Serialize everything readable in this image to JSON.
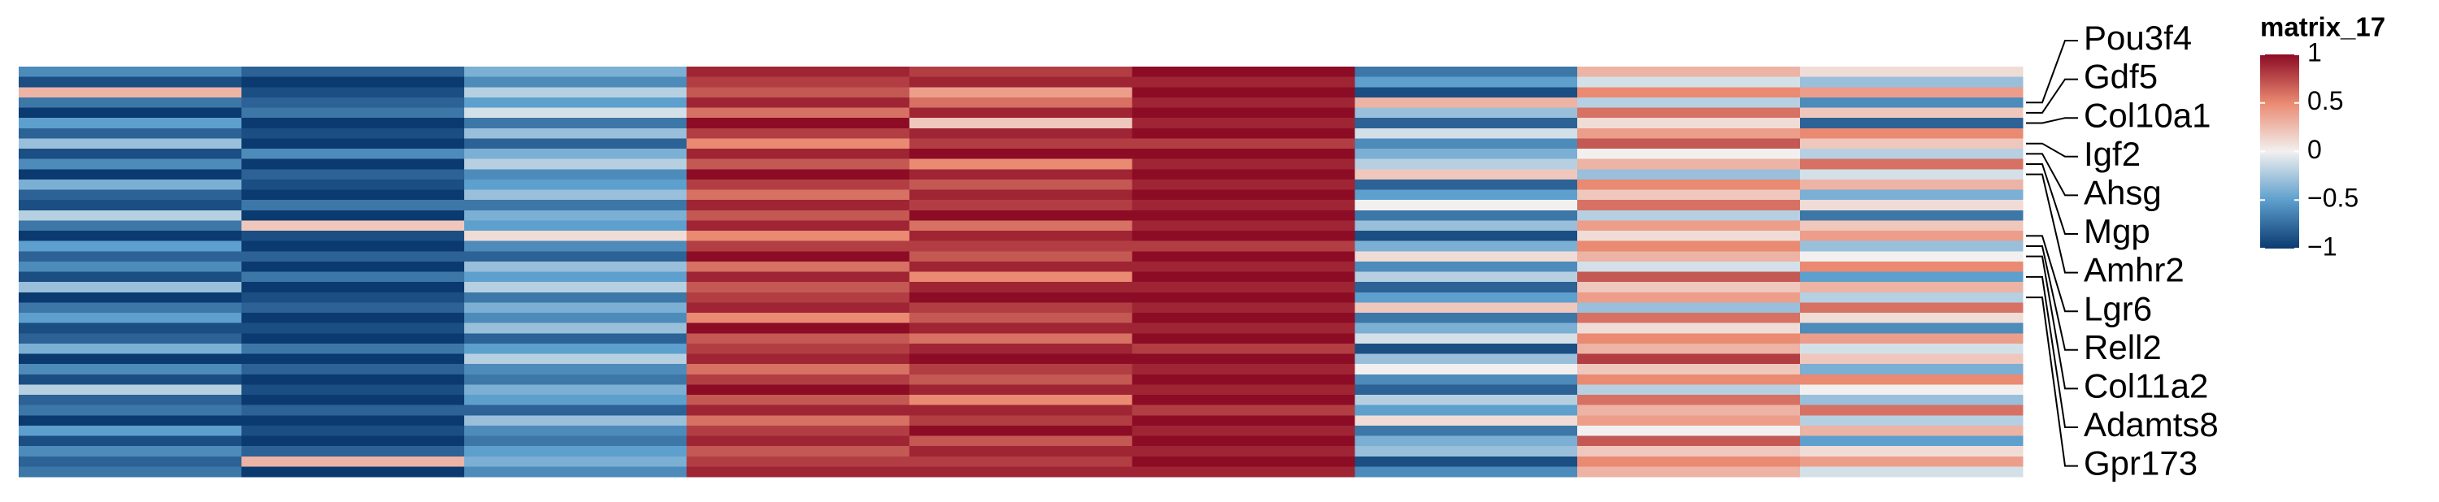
{
  "chart_data": {
    "type": "heatmap",
    "legend_title": "matrix_17",
    "matrix": [
      [
        -0.6,
        -0.8,
        -0.4,
        0.9,
        0.8,
        1,
        -0.7,
        0.3,
        0.1
      ],
      [
        -0.9,
        -1,
        -0.6,
        0.8,
        0.9,
        0.9,
        -0.5,
        -0.1,
        -0.3
      ],
      [
        0.3,
        -0.9,
        -0.2,
        0.7,
        0.4,
        1,
        -0.9,
        0.5,
        0.4
      ],
      [
        -0.7,
        -0.8,
        -0.5,
        0.9,
        0.6,
        0.9,
        0.3,
        -0.2,
        -0.6
      ],
      [
        -1,
        -0.7,
        -0.1,
        0.6,
        0.9,
        1,
        -0.3,
        0.6,
        0.2
      ],
      [
        -0.5,
        -1,
        -0.7,
        1,
        0.2,
        0.9,
        -0.8,
        0.1,
        -0.8
      ],
      [
        -0.8,
        -0.9,
        -0.3,
        0.8,
        0.9,
        1,
        -0.1,
        0.4,
        0.5
      ],
      [
        -0.3,
        -1,
        -0.8,
        0.5,
        0.8,
        0.8,
        -0.6,
        0.7,
        0.2
      ],
      [
        -0.9,
        -0.6,
        -0.4,
        0.9,
        1,
        1,
        -0.4,
        0,
        -0.2
      ],
      [
        -0.6,
        -1,
        -0.2,
        0.7,
        0.5,
        0.9,
        -0.2,
        0.3,
        0.6
      ],
      [
        -1,
        -0.8,
        -0.6,
        1,
        0.9,
        1,
        0.2,
        -0.3,
        -0.1
      ],
      [
        -0.4,
        -0.9,
        -0.5,
        0.8,
        0.7,
        0.9,
        -0.8,
        0.5,
        0.3
      ],
      [
        -0.8,
        -1,
        -0.3,
        0.6,
        0.9,
        1,
        -0.5,
        0.2,
        -0.4
      ],
      [
        -0.9,
        -0.7,
        -0.7,
        0.9,
        0.8,
        0.9,
        0,
        0.6,
        0.1
      ],
      [
        -0.2,
        -1,
        -0.4,
        0.7,
        1,
        1,
        -0.7,
        -0.2,
        -0.7
      ],
      [
        -0.7,
        0.2,
        -0.5,
        0.9,
        0.6,
        0.9,
        -0.3,
        0.4,
        0.2
      ],
      [
        -1,
        -0.9,
        0.1,
        0.5,
        0.9,
        1,
        -0.9,
        0.1,
        0.4
      ],
      [
        -0.5,
        -1,
        -0.6,
        0.8,
        0.8,
        0.8,
        -0.4,
        0.5,
        -0.3
      ],
      [
        -0.8,
        -0.8,
        -0.8,
        1,
        0.7,
        1,
        0.1,
        0.3,
        0
      ],
      [
        -0.6,
        -1,
        -0.3,
        0.6,
        0.9,
        0.9,
        -0.6,
        -0.1,
        0.5
      ],
      [
        -0.9,
        -0.7,
        -0.5,
        0.9,
        0.5,
        1,
        -0.2,
        0.7,
        -0.5
      ],
      [
        -0.3,
        -1,
        -0.2,
        0.7,
        0.9,
        0.9,
        -0.8,
        0.2,
        0.3
      ],
      [
        -1,
        -0.9,
        -0.7,
        0.8,
        1,
        1,
        -0.5,
        0.4,
        -0.2
      ],
      [
        -0.7,
        -0.8,
        -0.4,
        0.9,
        0.8,
        0.9,
        0.2,
        -0.3,
        0.6
      ],
      [
        -0.5,
        -1,
        -0.6,
        0.5,
        0.7,
        1,
        -0.7,
        0.6,
        0.1
      ],
      [
        -0.9,
        -0.9,
        -0.3,
        1,
        0.9,
        0.9,
        -0.4,
        0.1,
        -0.6
      ],
      [
        -0.8,
        -1,
        -0.8,
        0.7,
        0.6,
        1,
        -0.1,
        0.5,
        0.4
      ],
      [
        -0.4,
        -0.7,
        -0.5,
        0.8,
        0.9,
        0.8,
        -0.9,
        0.3,
        -0.1
      ],
      [
        -1,
        -1,
        -0.2,
        0.9,
        1,
        1,
        -0.3,
        0.8,
        0.2
      ],
      [
        -0.6,
        -0.8,
        -0.6,
        0.6,
        0.8,
        0.9,
        0,
        0.2,
        -0.4
      ],
      [
        -0.9,
        -1,
        -0.7,
        0.8,
        0.7,
        1,
        -0.6,
        0.5,
        0.5
      ],
      [
        -0.2,
        -0.9,
        -0.4,
        1,
        0.9,
        0.9,
        -0.8,
        -0.2,
        0
      ],
      [
        -0.8,
        -1,
        -0.5,
        0.7,
        0.5,
        1,
        -0.2,
        0.6,
        -0.3
      ],
      [
        -0.7,
        -0.8,
        -0.8,
        0.9,
        0.9,
        0.8,
        -0.5,
        0.3,
        0.6
      ],
      [
        -1,
        -1,
        -0.3,
        0.6,
        0.8,
        1,
        0.1,
        0.4,
        -0.2
      ],
      [
        -0.5,
        -0.9,
        -0.6,
        0.8,
        1,
        0.9,
        -0.7,
        0,
        0.3
      ],
      [
        -0.9,
        -1,
        -0.7,
        0.9,
        0.7,
        1,
        -0.4,
        0.7,
        -0.5
      ],
      [
        -0.6,
        -0.8,
        -0.5,
        0.7,
        0.9,
        0.9,
        -0.3,
        0.2,
        0.1
      ],
      [
        -0.8,
        0.3,
        -0.4,
        0.8,
        0.8,
        1,
        -0.9,
        0.5,
        0.4
      ],
      [
        -0.7,
        -1,
        -0.6,
        0.9,
        0.9,
        0.9,
        -0.6,
        0.3,
        -0.1
      ]
    ],
    "row_labels": [
      {
        "row": 3,
        "label": "Pou3f4"
      },
      {
        "row": 4,
        "label": "Gdf5"
      },
      {
        "row": 5,
        "label": "Col10a1"
      },
      {
        "row": 7,
        "label": "Igf2"
      },
      {
        "row": 8,
        "label": "Ahsg"
      },
      {
        "row": 9,
        "label": "Mgp"
      },
      {
        "row": 10,
        "label": "Amhr2"
      },
      {
        "row": 16,
        "label": "Lgr6"
      },
      {
        "row": 17,
        "label": "Rell2"
      },
      {
        "row": 18,
        "label": "Col11a2"
      },
      {
        "row": 20,
        "label": "Adamts8"
      },
      {
        "row": 22,
        "label": "Gpr173"
      }
    ],
    "color_stops": [
      {
        "value": -1,
        "color": "#0b3a70"
      },
      {
        "value": -0.5,
        "color": "#5d9fcd"
      },
      {
        "value": 0,
        "color": "#f2f0ef"
      },
      {
        "value": 0.5,
        "color": "#ea8a72"
      },
      {
        "value": 1,
        "color": "#8c0c25"
      }
    ],
    "clim": [
      -1,
      1
    ],
    "cticks": [
      1,
      0.5,
      0,
      {
        "value": -0.5,
        "label": "−0.5"
      },
      {
        "value": -1,
        "label": "−1"
      }
    ]
  }
}
